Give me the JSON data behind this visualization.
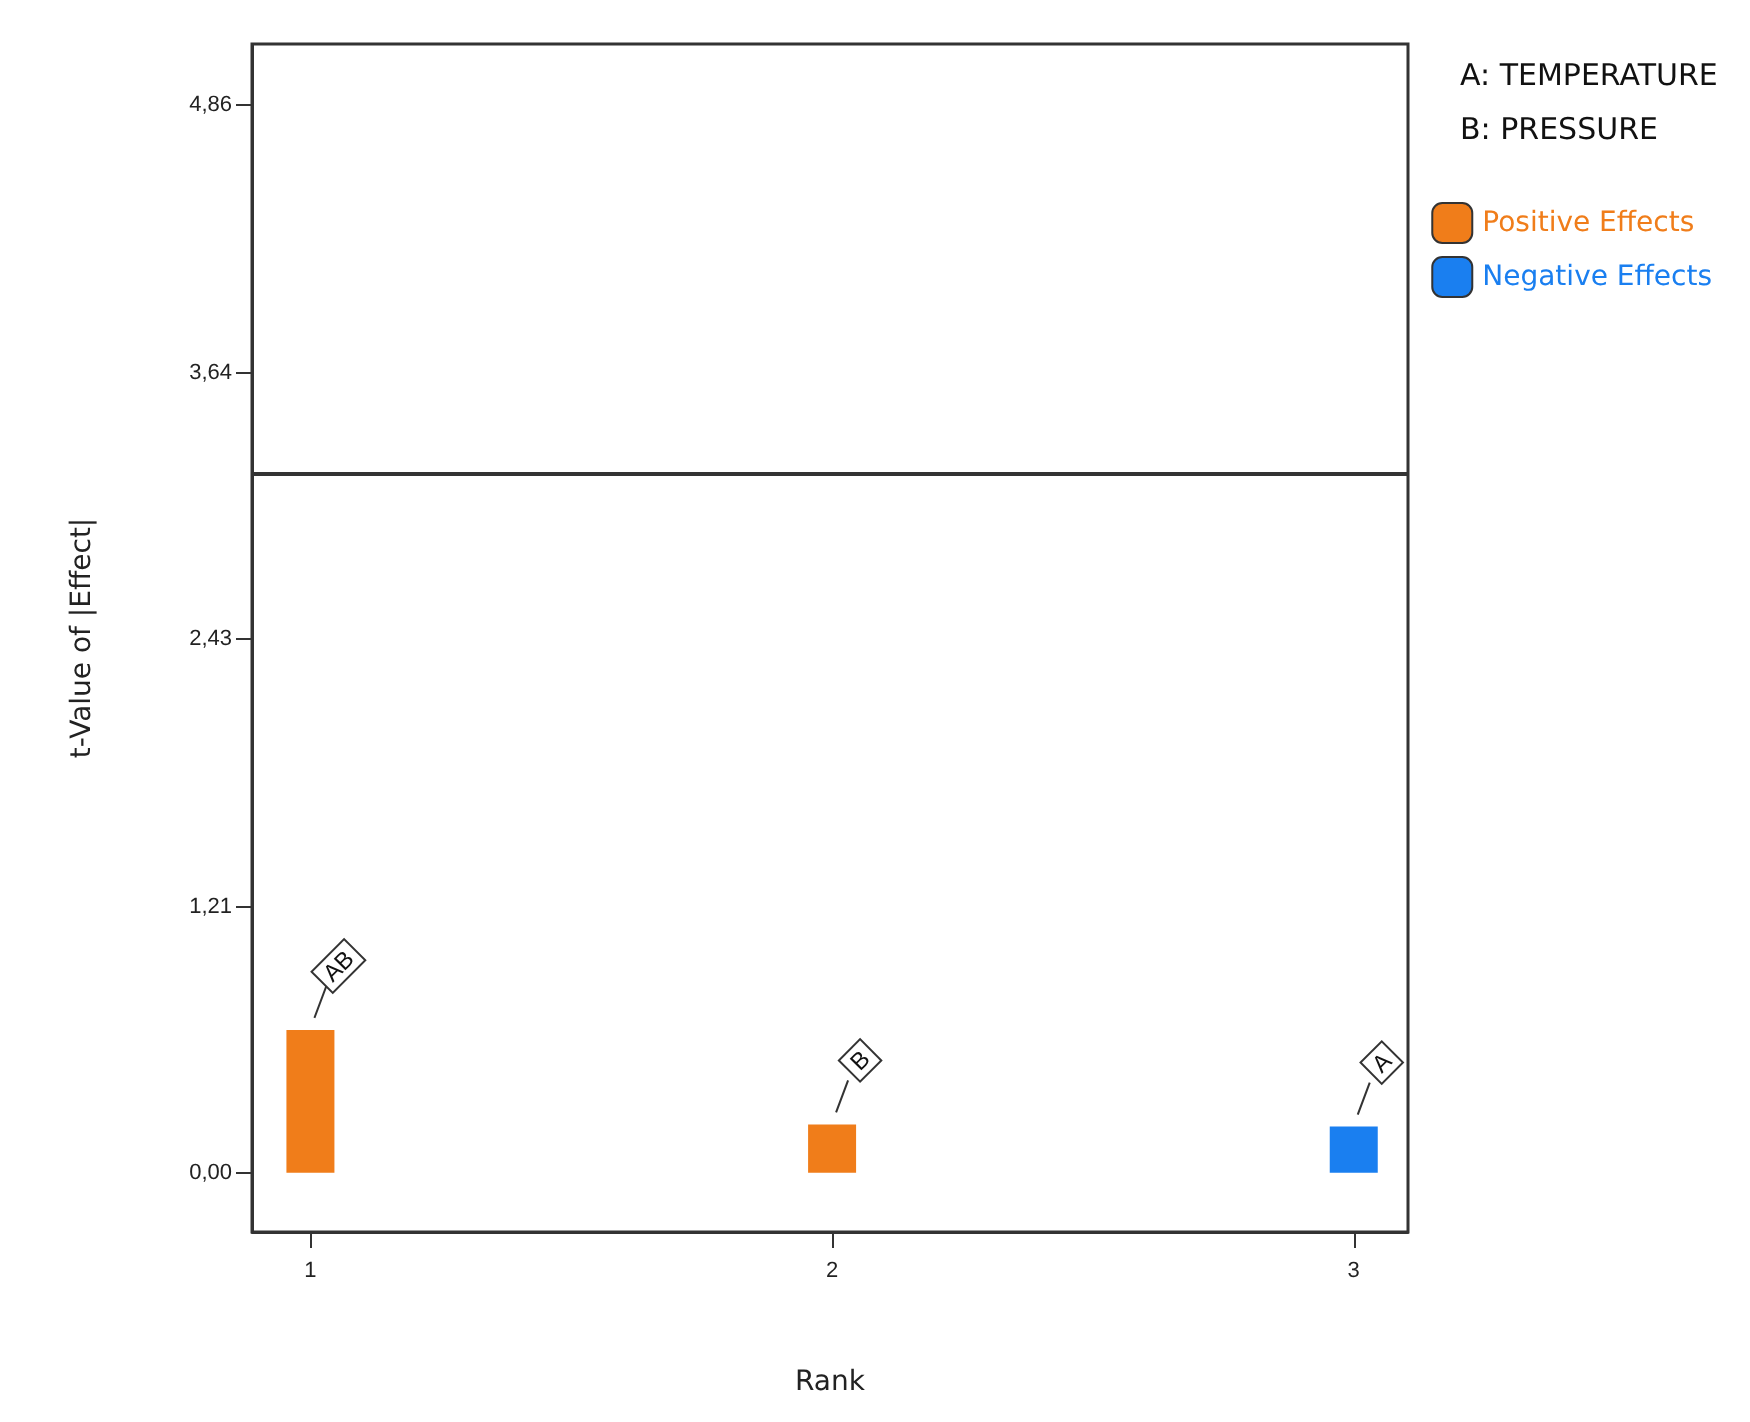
{
  "chart_data": {
    "type": "bar",
    "xlabel": "Rank",
    "ylabel": "t-Value of |Effect|",
    "x": [
      1,
      2,
      3
    ],
    "series": [
      {
        "name": "Positive Effects",
        "color": "#f07d1a",
        "values": [
          0.65,
          0.22,
          null
        ]
      },
      {
        "name": "Negative Effects",
        "color": "#1a7ff0",
        "values": [
          null,
          null,
          0.21
        ]
      }
    ],
    "xlim": [
      0.888,
      3.104
    ],
    "xticks": [
      1,
      2,
      3
    ],
    "ylim": [
      -0.27,
      5.14
    ],
    "yticks": [
      {
        "value": 0,
        "label": "0,00"
      },
      {
        "value": 1.21,
        "label": "1,21"
      },
      {
        "value": 2.43,
        "label": "2,43"
      },
      {
        "value": 3.64,
        "label": "3,64"
      },
      {
        "value": 4.86,
        "label": "4,86"
      }
    ],
    "ref_lines": [
      {
        "axis": "y",
        "value": 3.18,
        "color": "#333333"
      }
    ],
    "annotations": [
      "A: TEMPERATURE",
      "B: PRESSURE",
      {
        "text": "AB",
        "x": 1,
        "y": 0.65
      },
      {
        "text": "B",
        "x": 2,
        "y": 0.22
      },
      {
        "text": "A",
        "x": 3,
        "y": 0.21
      }
    ],
    "legend": "top right",
    "grid": false
  }
}
